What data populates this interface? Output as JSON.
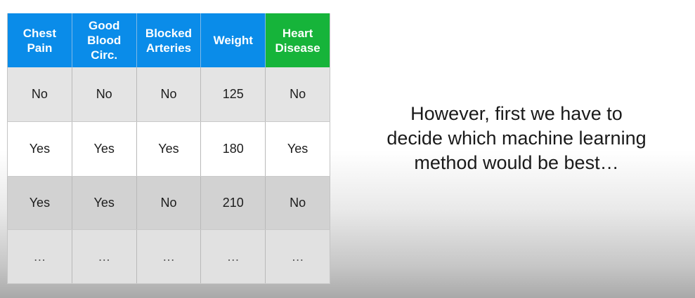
{
  "table": {
    "headers": [
      {
        "text": "Chest\nPain"
      },
      {
        "text": "Good\nBlood\nCirc."
      },
      {
        "text": "Blocked\nArteries"
      },
      {
        "text": "Weight"
      },
      {
        "text": "Heart\nDisease"
      }
    ],
    "rows": [
      [
        "No",
        "No",
        "No",
        "125",
        "No"
      ],
      [
        "Yes",
        "Yes",
        "Yes",
        "180",
        "Yes"
      ],
      [
        "Yes",
        "Yes",
        "No",
        "210",
        "No"
      ],
      [
        "…",
        "…",
        "…",
        "…",
        "…"
      ]
    ]
  },
  "caption": {
    "line1": "However, first we have to",
    "line2": "decide which machine learning",
    "line3": "method would be best…"
  },
  "colors": {
    "header_blue": "#0a8ce9",
    "header_green": "#16b43a"
  }
}
